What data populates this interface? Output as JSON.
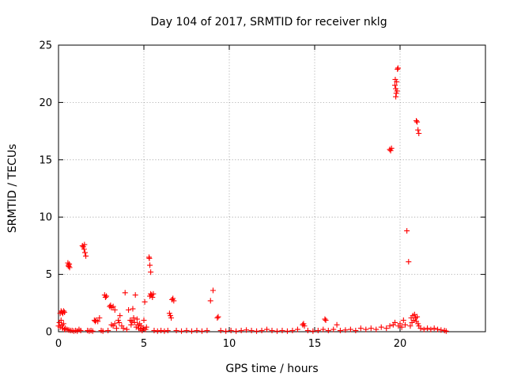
{
  "chart_data": {
    "type": "scatter",
    "title": "Day 104 of 2017, SRMTID for receiver nklg",
    "xlabel": "GPS time / hours",
    "ylabel": "SRMTID / TECUs",
    "xlim": [
      0,
      25
    ],
    "ylim": [
      0,
      25
    ],
    "xticks": [
      "0",
      "5",
      "10",
      "15",
      "20"
    ],
    "yticks": [
      "0",
      "5",
      "10",
      "15",
      "20",
      "25"
    ],
    "grid": true,
    "marker": "plus",
    "marker_color": "#ff0000",
    "series": [
      {
        "points": [
          [
            0.0,
            0.5
          ],
          [
            0.05,
            0.8
          ],
          [
            0.1,
            0.4
          ],
          [
            0.15,
            1.0
          ],
          [
            0.2,
            0.6
          ],
          [
            0.25,
            0.3
          ],
          [
            0.3,
            0.7
          ],
          [
            0.35,
            0.2
          ],
          [
            0.1,
            1.6
          ],
          [
            0.15,
            1.8
          ],
          [
            0.2,
            1.7
          ],
          [
            0.25,
            1.6
          ],
          [
            0.3,
            1.8
          ],
          [
            0.35,
            1.7
          ],
          [
            0.4,
            0.3
          ],
          [
            0.5,
            0.2
          ],
          [
            0.6,
            0.15
          ],
          [
            0.7,
            0.1
          ],
          [
            0.8,
            0.1
          ],
          [
            0.9,
            0.05
          ],
          [
            1.0,
            0.1
          ],
          [
            1.1,
            0.05
          ],
          [
            1.2,
            0.2
          ],
          [
            1.3,
            0.1
          ],
          [
            0.55,
            6.0
          ],
          [
            0.58,
            5.8
          ],
          [
            0.6,
            5.7
          ],
          [
            0.63,
            5.9
          ],
          [
            0.65,
            5.6
          ],
          [
            1.4,
            7.5
          ],
          [
            1.45,
            7.4
          ],
          [
            1.5,
            7.2
          ],
          [
            1.52,
            7.6
          ],
          [
            1.55,
            6.9
          ],
          [
            1.6,
            6.6
          ],
          [
            1.7,
            0.1
          ],
          [
            1.8,
            0.05
          ],
          [
            1.9,
            0.1
          ],
          [
            2.0,
            0.05
          ],
          [
            2.1,
            1.0
          ],
          [
            2.15,
            0.9
          ],
          [
            2.2,
            1.0
          ],
          [
            2.3,
            0.9
          ],
          [
            2.4,
            1.2
          ],
          [
            2.5,
            0.1
          ],
          [
            2.6,
            0.05
          ],
          [
            2.7,
            3.2
          ],
          [
            2.75,
            3.0
          ],
          [
            2.8,
            3.1
          ],
          [
            2.9,
            0.1
          ],
          [
            3.0,
            2.2
          ],
          [
            3.05,
            2.3
          ],
          [
            3.1,
            2.1
          ],
          [
            3.2,
            2.2
          ],
          [
            3.3,
            1.9
          ],
          [
            3.1,
            0.6
          ],
          [
            3.2,
            0.5
          ],
          [
            3.3,
            0.7
          ],
          [
            3.4,
            0.3
          ],
          [
            3.5,
            1.0
          ],
          [
            3.55,
            0.8
          ],
          [
            3.6,
            1.4
          ],
          [
            3.7,
            0.5
          ],
          [
            3.8,
            0.3
          ],
          [
            3.9,
            3.4
          ],
          [
            4.0,
            0.2
          ],
          [
            4.1,
            1.9
          ],
          [
            4.2,
            1.0
          ],
          [
            4.25,
            0.6
          ],
          [
            4.3,
            0.9
          ],
          [
            4.35,
            2.0
          ],
          [
            4.4,
            1.2
          ],
          [
            4.45,
            0.8
          ],
          [
            4.5,
            3.2
          ],
          [
            4.55,
            0.4
          ],
          [
            4.6,
            1.1
          ],
          [
            4.65,
            0.6
          ],
          [
            4.7,
            0.3
          ],
          [
            4.75,
            0.7
          ],
          [
            4.8,
            0.2
          ],
          [
            4.85,
            0.5
          ],
          [
            4.9,
            0.1
          ],
          [
            4.95,
            0.3
          ],
          [
            5.0,
            1.0
          ],
          [
            5.05,
            2.6
          ],
          [
            5.1,
            0.2
          ],
          [
            5.15,
            0.4
          ],
          [
            5.3,
            6.5
          ],
          [
            5.32,
            6.4
          ],
          [
            5.35,
            5.8
          ],
          [
            5.4,
            5.2
          ],
          [
            5.35,
            3.1
          ],
          [
            5.4,
            3.3
          ],
          [
            5.45,
            3.2
          ],
          [
            5.5,
            3.0
          ],
          [
            5.55,
            3.3
          ],
          [
            5.6,
            0.1
          ],
          [
            5.8,
            0.05
          ],
          [
            6.0,
            0.1
          ],
          [
            6.2,
            0.05
          ],
          [
            6.4,
            0.1
          ],
          [
            6.5,
            1.6
          ],
          [
            6.55,
            1.4
          ],
          [
            6.6,
            1.2
          ],
          [
            6.65,
            2.8
          ],
          [
            6.7,
            2.9
          ],
          [
            6.75,
            2.7
          ],
          [
            6.9,
            0.1
          ],
          [
            7.2,
            0.05
          ],
          [
            7.5,
            0.1
          ],
          [
            7.8,
            0.05
          ],
          [
            8.1,
            0.1
          ],
          [
            8.4,
            0.05
          ],
          [
            8.7,
            0.1
          ],
          [
            8.9,
            2.7
          ],
          [
            9.05,
            3.6
          ],
          [
            9.3,
            1.2
          ],
          [
            9.35,
            1.3
          ],
          [
            9.5,
            0.1
          ],
          [
            9.8,
            0.05
          ],
          [
            10.1,
            0.1
          ],
          [
            10.4,
            0.05
          ],
          [
            10.7,
            0.1
          ],
          [
            11.0,
            0.15
          ],
          [
            11.3,
            0.1
          ],
          [
            11.6,
            0.05
          ],
          [
            11.9,
            0.1
          ],
          [
            12.2,
            0.2
          ],
          [
            12.5,
            0.1
          ],
          [
            12.8,
            0.05
          ],
          [
            13.1,
            0.1
          ],
          [
            13.4,
            0.05
          ],
          [
            13.7,
            0.1
          ],
          [
            14.0,
            0.2
          ],
          [
            14.3,
            0.6
          ],
          [
            14.35,
            0.7
          ],
          [
            14.4,
            0.5
          ],
          [
            14.6,
            0.1
          ],
          [
            14.9,
            0.05
          ],
          [
            15.2,
            0.1
          ],
          [
            15.5,
            0.2
          ],
          [
            15.6,
            1.1
          ],
          [
            15.65,
            1.0
          ],
          [
            15.8,
            0.1
          ],
          [
            16.1,
            0.2
          ],
          [
            16.3,
            0.6
          ],
          [
            16.5,
            0.1
          ],
          [
            16.8,
            0.15
          ],
          [
            17.1,
            0.2
          ],
          [
            17.4,
            0.1
          ],
          [
            17.7,
            0.3
          ],
          [
            18.0,
            0.2
          ],
          [
            18.3,
            0.3
          ],
          [
            18.6,
            0.2
          ],
          [
            18.9,
            0.4
          ],
          [
            19.2,
            0.3
          ],
          [
            19.4,
            0.5
          ],
          [
            19.6,
            0.6
          ],
          [
            19.7,
            0.8
          ],
          [
            19.4,
            15.9
          ],
          [
            19.45,
            15.8
          ],
          [
            19.5,
            16.0
          ],
          [
            19.7,
            21.5
          ],
          [
            19.72,
            22.0
          ],
          [
            19.75,
            21.2
          ],
          [
            19.78,
            20.8
          ],
          [
            19.8,
            21.8
          ],
          [
            19.82,
            21.0
          ],
          [
            19.85,
            22.9
          ],
          [
            19.88,
            23.0
          ],
          [
            19.75,
            20.5
          ],
          [
            19.9,
            0.5
          ],
          [
            20.0,
            0.7
          ],
          [
            20.1,
            0.4
          ],
          [
            20.2,
            1.0
          ],
          [
            20.3,
            0.6
          ],
          [
            20.4,
            8.8
          ],
          [
            20.5,
            6.1
          ],
          [
            20.6,
            0.5
          ],
          [
            20.65,
            1.2
          ],
          [
            20.7,
            0.8
          ],
          [
            20.75,
            1.4
          ],
          [
            20.8,
            1.0
          ],
          [
            20.85,
            1.5
          ],
          [
            20.9,
            1.2
          ],
          [
            20.95,
            0.9
          ],
          [
            21.0,
            1.3
          ],
          [
            21.05,
            0.7
          ],
          [
            21.1,
            0.5
          ],
          [
            20.95,
            18.4
          ],
          [
            21.0,
            18.3
          ],
          [
            21.05,
            17.6
          ],
          [
            21.1,
            17.3
          ],
          [
            21.2,
            0.3
          ],
          [
            21.4,
            0.2
          ],
          [
            21.6,
            0.3
          ],
          [
            21.8,
            0.2
          ],
          [
            22.0,
            0.3
          ],
          [
            22.2,
            0.2
          ],
          [
            22.4,
            0.15
          ],
          [
            22.6,
            0.1
          ],
          [
            22.7,
            0.05
          ]
        ]
      }
    ]
  }
}
